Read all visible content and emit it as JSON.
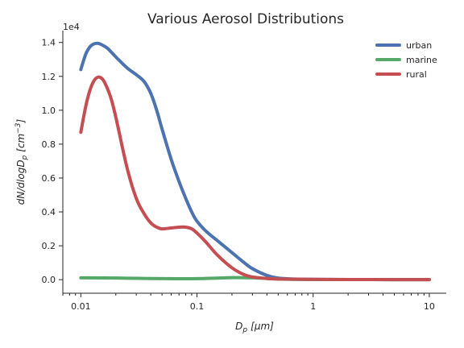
{
  "chart_data": {
    "type": "line",
    "title": "Various Aerosol Distributions",
    "xlabel_base": "D",
    "xlabel_sub": "p",
    "xlabel_unit": "[μm]",
    "ylabel_main": "dN/dlogD",
    "ylabel_sub": "p",
    "ylabel_unit": "[cm",
    "ylabel_exp": "−3",
    "ylabel_close": "]",
    "y_multiplier": "1e4",
    "xscale": "log",
    "xlim": [
      0.007,
      14
    ],
    "ylim": [
      -800,
      14700
    ],
    "x_ticks": [
      0.01,
      0.1,
      1,
      10
    ],
    "x_tick_labels": [
      "0.01",
      "0.1",
      "1",
      "10"
    ],
    "y_ticks": [
      0,
      2000,
      4000,
      6000,
      8000,
      10000,
      12000,
      14000
    ],
    "y_tick_labels": [
      "0.0",
      "0.2",
      "0.4",
      "0.6",
      "0.8",
      "1.0",
      "1.2",
      "1.4"
    ],
    "legend_position": "top-right",
    "grid": false,
    "series": [
      {
        "name": "urban",
        "color": "#4c72b0",
        "points": [
          [
            0.01,
            12400
          ],
          [
            0.011,
            13300
          ],
          [
            0.012,
            13750
          ],
          [
            0.013,
            13920
          ],
          [
            0.014,
            13950
          ],
          [
            0.015,
            13880
          ],
          [
            0.017,
            13650
          ],
          [
            0.02,
            13150
          ],
          [
            0.025,
            12500
          ],
          [
            0.03,
            12100
          ],
          [
            0.035,
            11700
          ],
          [
            0.04,
            11000
          ],
          [
            0.045,
            10000
          ],
          [
            0.05,
            8900
          ],
          [
            0.06,
            7100
          ],
          [
            0.07,
            5800
          ],
          [
            0.08,
            4800
          ],
          [
            0.09,
            4000
          ],
          [
            0.1,
            3450
          ],
          [
            0.12,
            2850
          ],
          [
            0.15,
            2300
          ],
          [
            0.2,
            1600
          ],
          [
            0.25,
            1050
          ],
          [
            0.3,
            650
          ],
          [
            0.4,
            250
          ],
          [
            0.5,
            90
          ],
          [
            0.7,
            40
          ],
          [
            1,
            20
          ],
          [
            2,
            10
          ],
          [
            5,
            5
          ],
          [
            10,
            3
          ]
        ]
      },
      {
        "name": "marine",
        "color": "#55a868",
        "points": [
          [
            0.01,
            110
          ],
          [
            0.02,
            95
          ],
          [
            0.04,
            70
          ],
          [
            0.07,
            55
          ],
          [
            0.1,
            60
          ],
          [
            0.15,
            90
          ],
          [
            0.2,
            120
          ],
          [
            0.3,
            110
          ],
          [
            0.5,
            40
          ],
          [
            0.7,
            15
          ],
          [
            1,
            10
          ],
          [
            2,
            8
          ],
          [
            5,
            5
          ],
          [
            10,
            5
          ]
        ]
      },
      {
        "name": "rural",
        "color": "#c44e52",
        "points": [
          [
            0.01,
            8700
          ],
          [
            0.011,
            10200
          ],
          [
            0.012,
            11200
          ],
          [
            0.013,
            11750
          ],
          [
            0.014,
            11950
          ],
          [
            0.015,
            11900
          ],
          [
            0.016,
            11650
          ],
          [
            0.018,
            10800
          ],
          [
            0.02,
            9600
          ],
          [
            0.025,
            6600
          ],
          [
            0.03,
            4800
          ],
          [
            0.035,
            3900
          ],
          [
            0.04,
            3350
          ],
          [
            0.045,
            3100
          ],
          [
            0.05,
            3000
          ],
          [
            0.06,
            3050
          ],
          [
            0.07,
            3100
          ],
          [
            0.08,
            3100
          ],
          [
            0.09,
            3000
          ],
          [
            0.1,
            2750
          ],
          [
            0.12,
            2200
          ],
          [
            0.15,
            1450
          ],
          [
            0.2,
            700
          ],
          [
            0.25,
            320
          ],
          [
            0.3,
            160
          ],
          [
            0.4,
            70
          ],
          [
            0.5,
            40
          ],
          [
            1,
            20
          ],
          [
            2,
            10
          ],
          [
            5,
            5
          ],
          [
            10,
            3
          ]
        ]
      }
    ]
  }
}
